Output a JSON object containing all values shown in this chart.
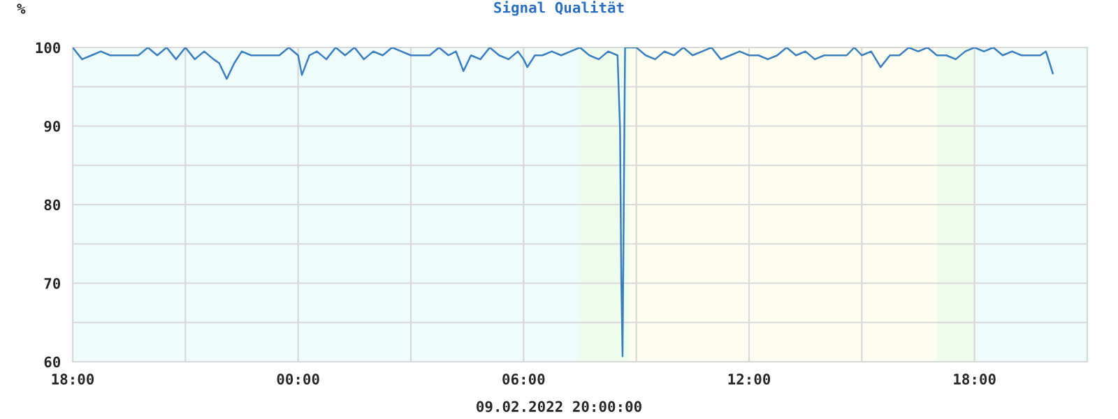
{
  "chart_data": {
    "type": "line",
    "title": "Signal Qualität",
    "ylabel": "%",
    "annotations": [
      "09.02.2022 20:00:00"
    ],
    "x": [
      "2022-02-08T18:00",
      "2022-02-08T18:15",
      "2022-02-08T18:30",
      "2022-02-08T18:45",
      "2022-02-08T19:00",
      "2022-02-08T19:15",
      "2022-02-08T19:30",
      "2022-02-08T19:45",
      "2022-02-08T20:00",
      "2022-02-08T20:15",
      "2022-02-08T20:30",
      "2022-02-08T20:45",
      "2022-02-08T21:00",
      "2022-02-08T21:15",
      "2022-02-08T21:30",
      "2022-02-08T21:45",
      "2022-02-08T21:54",
      "2022-02-08T22:06",
      "2022-02-08T22:18",
      "2022-02-08T22:30",
      "2022-02-08T22:45",
      "2022-02-08T23:00",
      "2022-02-08T23:15",
      "2022-02-08T23:30",
      "2022-02-08T23:45",
      "2022-02-09T00:00",
      "2022-02-09T00:06",
      "2022-02-09T00:18",
      "2022-02-09T00:30",
      "2022-02-09T00:45",
      "2022-02-09T01:00",
      "2022-02-09T01:15",
      "2022-02-09T01:30",
      "2022-02-09T01:45",
      "2022-02-09T02:00",
      "2022-02-09T02:15",
      "2022-02-09T02:30",
      "2022-02-09T02:45",
      "2022-02-09T03:00",
      "2022-02-09T03:15",
      "2022-02-09T03:30",
      "2022-02-09T03:45",
      "2022-02-09T04:00",
      "2022-02-09T04:12",
      "2022-02-09T04:24",
      "2022-02-09T04:36",
      "2022-02-09T04:51",
      "2022-02-09T05:06",
      "2022-02-09T05:21",
      "2022-02-09T05:36",
      "2022-02-09T05:51",
      "2022-02-09T06:00",
      "2022-02-09T06:06",
      "2022-02-09T06:18",
      "2022-02-09T06:30",
      "2022-02-09T06:45",
      "2022-02-09T07:00",
      "2022-02-09T07:15",
      "2022-02-09T07:30",
      "2022-02-09T07:45",
      "2022-02-09T08:00",
      "2022-02-09T08:15",
      "2022-02-09T08:30",
      "2022-02-09T08:34",
      "2022-02-09T08:36",
      "2022-02-09T08:38",
      "2022-02-09T08:42",
      "2022-02-09T09:00",
      "2022-02-09T09:15",
      "2022-02-09T09:30",
      "2022-02-09T09:45",
      "2022-02-09T10:00",
      "2022-02-09T10:15",
      "2022-02-09T10:30",
      "2022-02-09T10:45",
      "2022-02-09T11:00",
      "2022-02-09T11:15",
      "2022-02-09T11:30",
      "2022-02-09T11:45",
      "2022-02-09T12:00",
      "2022-02-09T12:15",
      "2022-02-09T12:30",
      "2022-02-09T12:45",
      "2022-02-09T13:00",
      "2022-02-09T13:15",
      "2022-02-09T13:30",
      "2022-02-09T13:45",
      "2022-02-09T14:00",
      "2022-02-09T14:15",
      "2022-02-09T14:24",
      "2022-02-09T14:36",
      "2022-02-09T14:48",
      "2022-02-09T15:00",
      "2022-02-09T15:15",
      "2022-02-09T15:30",
      "2022-02-09T15:45",
      "2022-02-09T16:00",
      "2022-02-09T16:15",
      "2022-02-09T16:30",
      "2022-02-09T16:45",
      "2022-02-09T17:00",
      "2022-02-09T17:15",
      "2022-02-09T17:30",
      "2022-02-09T17:45",
      "2022-02-09T18:00",
      "2022-02-09T18:15",
      "2022-02-09T18:30",
      "2022-02-09T18:45",
      "2022-02-09T19:00",
      "2022-02-09T19:15",
      "2022-02-09T19:30",
      "2022-02-09T19:45",
      "2022-02-09T19:54",
      "2022-02-09T20:00",
      "2022-02-09T20:05"
    ],
    "series": [
      {
        "color": "#3a7ebf",
        "values": [
          100,
          98.5,
          99,
          99.5,
          99,
          99,
          99,
          99,
          100,
          99,
          100,
          98.5,
          100,
          98.5,
          99.5,
          98.5,
          98,
          96,
          98,
          99.5,
          99,
          99,
          99,
          99,
          100,
          99,
          96.5,
          99,
          99.5,
          98.5,
          100,
          99,
          100,
          98.5,
          99.5,
          99,
          100,
          99.5,
          99,
          99,
          99,
          100,
          99,
          99.5,
          97,
          99,
          98.5,
          100,
          99,
          98.5,
          99.5,
          98.5,
          97.5,
          99,
          99,
          99.5,
          99,
          99.5,
          100,
          99,
          98.5,
          99.5,
          99,
          89.7,
          70.5,
          60.7,
          100,
          100,
          99,
          98.5,
          99.5,
          99,
          100,
          99,
          99.5,
          100,
          98.5,
          99,
          99.5,
          99,
          99,
          98.5,
          99,
          100,
          99,
          99.5,
          98.5,
          99,
          99,
          99,
          99,
          100,
          99,
          99.5,
          97.5,
          99,
          99,
          100,
          99.5,
          100,
          99,
          99,
          98.5,
          99.5,
          100,
          99.5,
          100,
          99,
          99.5,
          99,
          99,
          99,
          99.5,
          98,
          96.7
        ]
      }
    ],
    "xlim": [
      "2022-02-08T18:00",
      "2022-02-09T21:00"
    ],
    "xticks": [
      {
        "value": "2022-02-08T18:00",
        "label": "18:00"
      },
      {
        "value": "2022-02-08T21:00",
        "label": null
      },
      {
        "value": "2022-02-09T00:00",
        "label": "00:00"
      },
      {
        "value": "2022-02-09T03:00",
        "label": null
      },
      {
        "value": "2022-02-09T06:00",
        "label": "06:00"
      },
      {
        "value": "2022-02-09T09:00",
        "label": null
      },
      {
        "value": "2022-02-09T12:00",
        "label": "12:00"
      },
      {
        "value": "2022-02-09T15:00",
        "label": null
      },
      {
        "value": "2022-02-09T18:00",
        "label": "18:00"
      }
    ],
    "ylim": [
      60,
      100
    ],
    "yticks": [
      60,
      {
        "value": 65,
        "label": null
      },
      70,
      {
        "value": 75,
        "label": null
      },
      80,
      {
        "value": 85,
        "label": null
      },
      90,
      {
        "value": 95,
        "label": null
      },
      100
    ],
    "bands": [
      {
        "axis": "x",
        "from": "2022-02-08T18:00",
        "to": "2022-02-09T07:30",
        "color": "#eefcfc"
      },
      {
        "axis": "x",
        "from": "2022-02-09T07:30",
        "to": "2022-02-09T08:48",
        "color": "#eefcee"
      },
      {
        "axis": "x",
        "from": "2022-02-09T08:48",
        "to": "2022-02-09T17:00",
        "color": "#fdfeef"
      },
      {
        "axis": "x",
        "from": "2022-02-09T17:00",
        "to": "2022-02-09T18:00",
        "color": "#eefcee"
      },
      {
        "axis": "x",
        "from": "2022-02-09T18:00",
        "to": "2022-02-09T21:00",
        "color": "#eefcfc"
      }
    ],
    "grid": true,
    "marker": "none",
    "line_style": "solid"
  }
}
